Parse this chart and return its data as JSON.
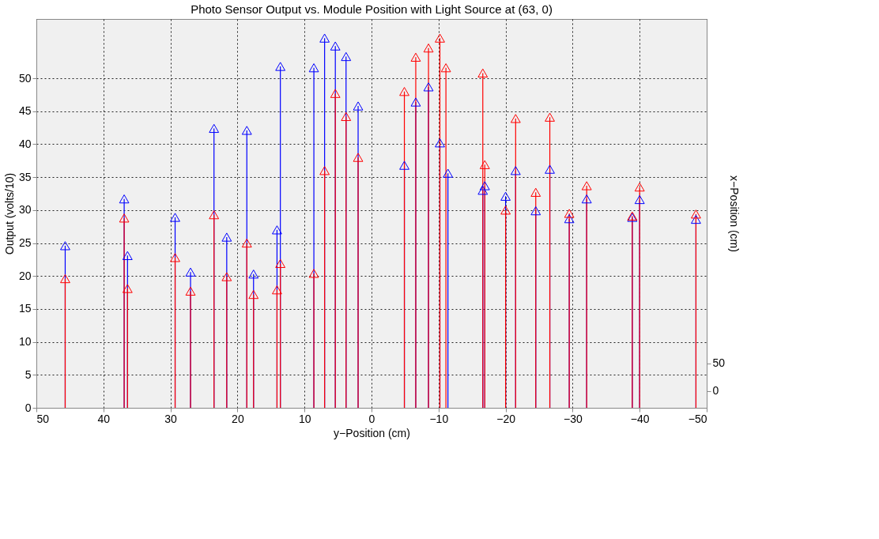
{
  "chart_data": {
    "type": "lollipop",
    "title": "Photo Sensor Output vs. Module Position with Light Source at (63, 0)",
    "xlabel": "y−Position (cm)",
    "ylabel": "Output (volts/10)",
    "y2label": "x−Position (cm)",
    "xlim": [
      50,
      -50
    ],
    "xticks": [
      50,
      40,
      30,
      20,
      10,
      0,
      -10,
      -20,
      -30,
      -40,
      -50
    ],
    "ylim": [
      0,
      59
    ],
    "yticks": [
      0,
      5,
      10,
      15,
      20,
      25,
      30,
      35,
      40,
      45,
      50
    ],
    "y2lim": [
      -30,
      670
    ],
    "y2ticks": [
      0,
      50
    ],
    "grid": true,
    "marker": "triangle",
    "legend": false,
    "series": [
      {
        "color": "#0000ff",
        "x": [
          45.7,
          36.9,
          36.4,
          29.3,
          27.0,
          23.5,
          21.6,
          18.6,
          17.6,
          14.1,
          13.6,
          8.6,
          7.0,
          5.4,
          3.8,
          2.0,
          -4.9,
          -6.6,
          -8.5,
          -10.2,
          -11.4,
          -16.6,
          -16.9,
          -20.0,
          -21.5,
          -24.5,
          -26.6,
          -29.5,
          -32.1,
          -38.9,
          -40.0,
          -48.4
        ],
        "values": [
          24.6,
          31.7,
          23.1,
          28.9,
          20.6,
          42.4,
          25.9,
          42.1,
          20.3,
          27.0,
          51.8,
          51.6,
          56.1,
          54.9,
          53.3,
          45.8,
          36.8,
          46.4,
          48.7,
          40.2,
          35.6,
          33.0,
          33.7,
          32.1,
          36.0,
          29.9,
          36.2,
          28.7,
          31.7,
          28.9,
          31.6,
          28.6
        ]
      },
      {
        "color": "#ff0000",
        "x": [
          45.7,
          36.9,
          36.4,
          29.3,
          27.0,
          23.5,
          21.6,
          18.6,
          17.6,
          14.1,
          13.6,
          8.6,
          7.0,
          5.4,
          3.8,
          2.0,
          -4.9,
          -6.6,
          -8.5,
          -10.2,
          -11.1,
          -16.6,
          -16.9,
          -20.0,
          -21.5,
          -24.5,
          -26.6,
          -29.5,
          -32.1,
          -38.9,
          -40.0,
          -48.4
        ],
        "values": [
          19.6,
          28.8,
          18.1,
          22.8,
          17.7,
          29.3,
          19.9,
          25.0,
          17.2,
          17.9,
          21.9,
          20.4,
          36.0,
          47.7,
          44.2,
          38.0,
          48.0,
          53.2,
          54.6,
          56.1,
          51.6,
          50.8,
          36.9,
          30.0,
          43.9,
          32.7,
          44.1,
          29.5,
          33.7,
          29.1,
          33.5,
          29.4
        ]
      }
    ]
  }
}
